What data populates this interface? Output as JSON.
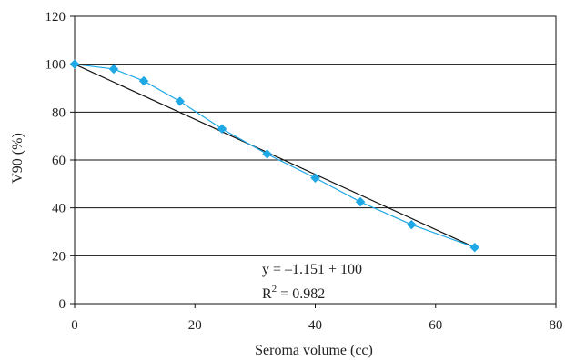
{
  "chart_data": {
    "type": "scatter",
    "title": "",
    "xlabel": "Seroma volume (cc)",
    "ylabel": "V90 (%)",
    "xlim": [
      0,
      80
    ],
    "ylim": [
      0,
      120
    ],
    "xticks": [
      "0",
      "20",
      "40",
      "60",
      "80"
    ],
    "yticks": [
      "0",
      "20",
      "40",
      "60",
      "80",
      "100",
      "120"
    ],
    "grid": "horizontal",
    "legend": "none",
    "series": [
      {
        "color": "#1ea9e6",
        "marker": "diamond",
        "points": [
          {
            "x": 0,
            "y": 100
          },
          {
            "x": 6.5,
            "y": 98
          },
          {
            "x": 11.5,
            "y": 93
          },
          {
            "x": 17.5,
            "y": 84.5
          },
          {
            "x": 24.5,
            "y": 73
          },
          {
            "x": 32,
            "y": 62.5
          },
          {
            "x": 40,
            "y": 52.5
          },
          {
            "x": 47.5,
            "y": 42.5
          },
          {
            "x": 56,
            "y": 33
          },
          {
            "x": 66.5,
            "y": 23.5
          }
        ]
      }
    ],
    "trendline": {
      "color": "#111111",
      "x0": 0,
      "y0": 100,
      "x1": 66.5,
      "y1": 23.5,
      "equation": "y = –1.151 + 100",
      "r2_prefix": "R",
      "r2_exp": "2",
      "r2_rest": " = 0.982"
    }
  }
}
